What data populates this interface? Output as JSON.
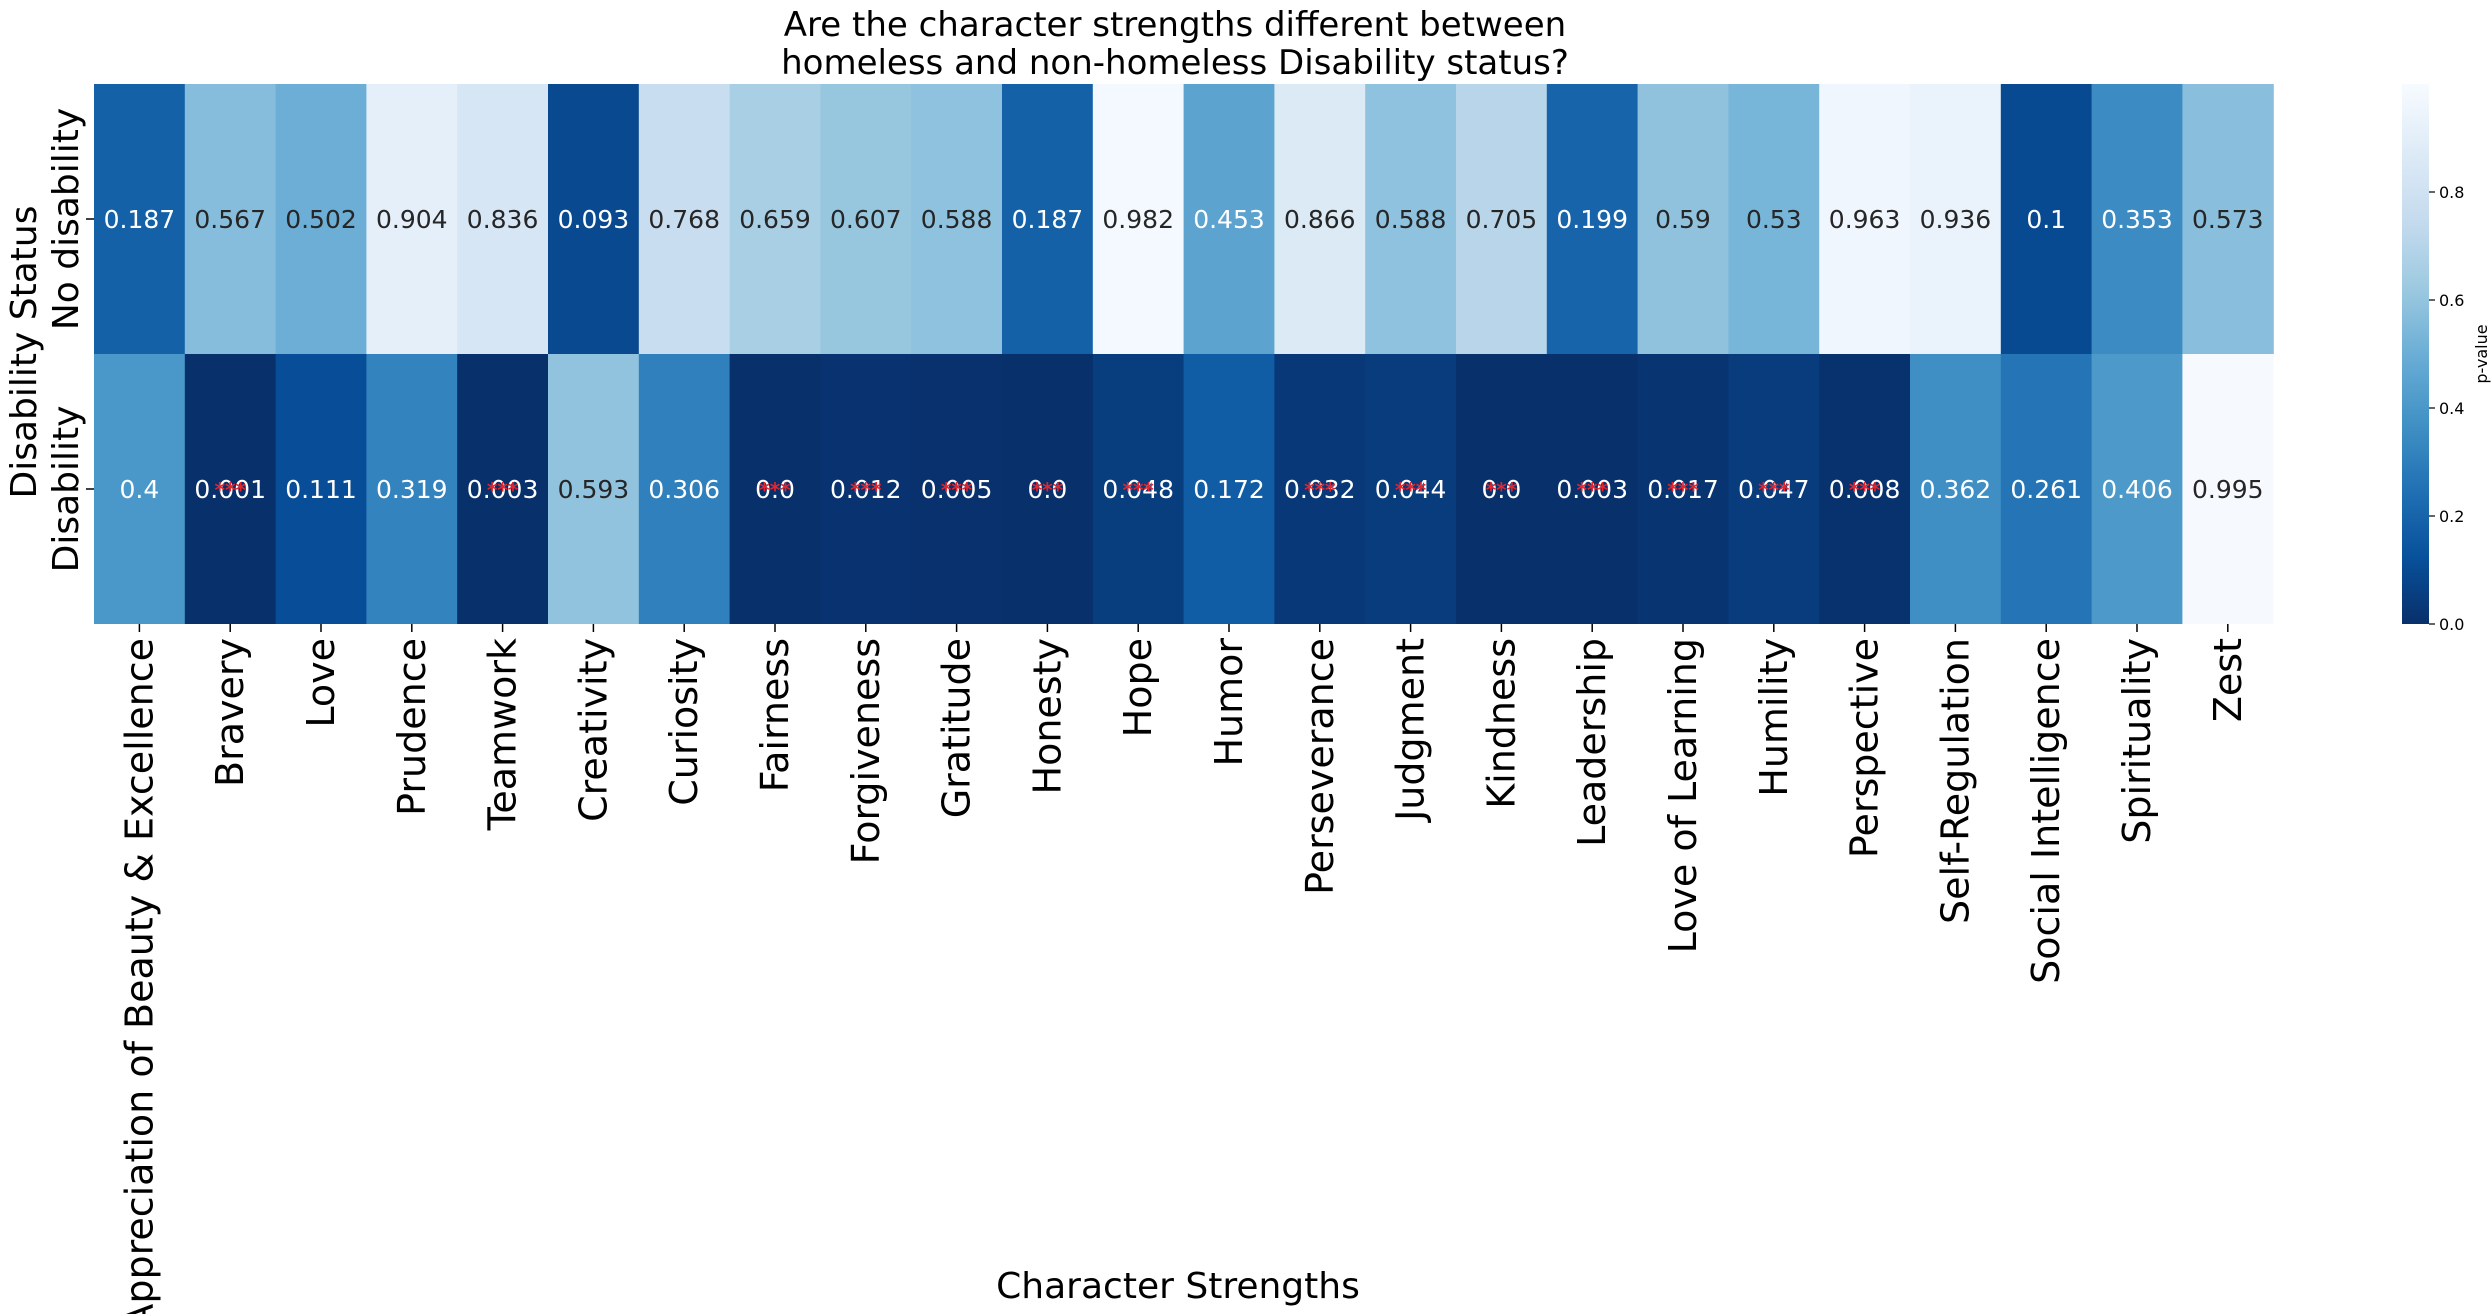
{
  "chart_data": {
    "type": "heatmap",
    "title_lines": [
      "Are the character strengths different between",
      "homeless and non-homeless Disability status?"
    ],
    "xlabel": "Character Strengths",
    "ylabel": "Disability Status",
    "colorbar_label": "p-value",
    "colormap": "Blues_r",
    "colorbar_ticks": [
      "0.0",
      "0.2",
      "0.4",
      "0.6",
      "0.8"
    ],
    "colorbar_range": [
      0,
      1
    ],
    "sig_marker": "***",
    "sig_color": "#e8232b",
    "columns": [
      "Appreciation of Beauty & Excellence",
      "Bravery",
      "Love",
      "Prudence",
      "Teamwork",
      "Creativity",
      "Curiosity",
      "Fairness",
      "Forgiveness",
      "Gratitude",
      "Honesty",
      "Hope",
      "Humor",
      "Perseverance",
      "Judgment",
      "Kindness",
      "Leadership",
      "Love of Learning",
      "Humility",
      "Perspective",
      "Self-Regulation",
      "Social Intelligence",
      "Spirituality",
      "Zest"
    ],
    "rows": [
      {
        "label": "No disability",
        "values": [
          0.187,
          0.567,
          0.502,
          0.904,
          0.836,
          0.093,
          0.768,
          0.659,
          0.607,
          0.588,
          0.187,
          0.982,
          0.453,
          0.866,
          0.588,
          0.705,
          0.199,
          0.59,
          0.53,
          0.963,
          0.936,
          0.1,
          0.353,
          0.573
        ],
        "labels": [
          "0.187",
          "0.567",
          "0.502",
          "0.904",
          "0.836",
          "0.093",
          "0.768",
          "0.659",
          "0.607",
          "0.588",
          "0.187",
          "0.982",
          "0.453",
          "0.866",
          "0.588",
          "0.705",
          "0.199",
          "0.59",
          "0.53",
          "0.963",
          "0.936",
          "0.1",
          "0.353",
          "0.573"
        ],
        "sig": [
          false,
          false,
          false,
          false,
          false,
          false,
          false,
          false,
          false,
          false,
          false,
          false,
          false,
          false,
          false,
          false,
          false,
          false,
          false,
          false,
          false,
          false,
          false,
          false
        ]
      },
      {
        "label": "Disability",
        "values": [
          0.4,
          0.001,
          0.111,
          0.319,
          0.003,
          0.593,
          0.306,
          0.0,
          0.012,
          0.005,
          0.0,
          0.048,
          0.172,
          0.032,
          0.044,
          0.0,
          0.003,
          0.017,
          0.047,
          0.008,
          0.362,
          0.261,
          0.406,
          0.995
        ],
        "labels": [
          "0.4",
          "0.001",
          "0.111",
          "0.319",
          "0.003",
          "0.593",
          "0.306",
          "0.0",
          "0.012",
          "0.005",
          "0.0",
          "0.048",
          "0.172",
          "0.032",
          "0.044",
          "0.0",
          "0.003",
          "0.017",
          "0.047",
          "0.008",
          "0.362",
          "0.261",
          "0.406",
          "0.995"
        ],
        "sig": [
          false,
          true,
          false,
          false,
          true,
          false,
          false,
          true,
          true,
          true,
          true,
          true,
          false,
          true,
          true,
          true,
          true,
          true,
          true,
          true,
          false,
          false,
          false,
          false
        ]
      }
    ]
  }
}
